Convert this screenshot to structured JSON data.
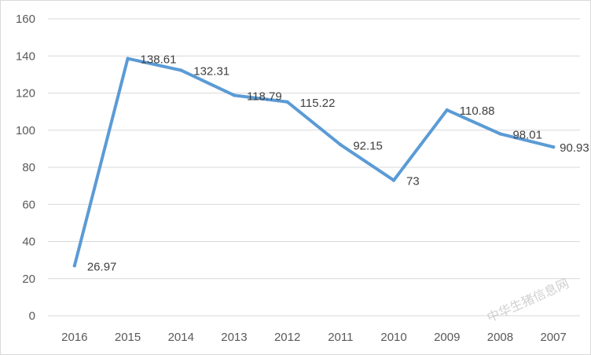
{
  "chart_data": {
    "type": "line",
    "title": "",
    "xlabel": "",
    "ylabel": "",
    "categories": [
      "2016",
      "2015",
      "2014",
      "2013",
      "2012",
      "2011",
      "2010",
      "2009",
      "2008",
      "2007"
    ],
    "series": [
      {
        "values": [
          26.97,
          138.61,
          132.31,
          118.79,
          115.22,
          92.15,
          73,
          110.88,
          98.01,
          90.93
        ],
        "labels": [
          "26.97",
          "138.61",
          "132.31",
          "118.79",
          "115.22",
          "92.15",
          "73",
          "110.88",
          "98.01",
          "90.93"
        ]
      }
    ],
    "ylim": [
      0,
      160
    ],
    "yticks": [
      "0",
      "20",
      "40",
      "60",
      "80",
      "100",
      "120",
      "140",
      "160"
    ],
    "grid": true,
    "legend": "none",
    "colors": {
      "line": "#5b9bd5",
      "grid": "#d9d9d9",
      "tick_text": "#595959",
      "data_label": "#404040"
    }
  },
  "watermark": {
    "text": "中华生猪信息网"
  }
}
